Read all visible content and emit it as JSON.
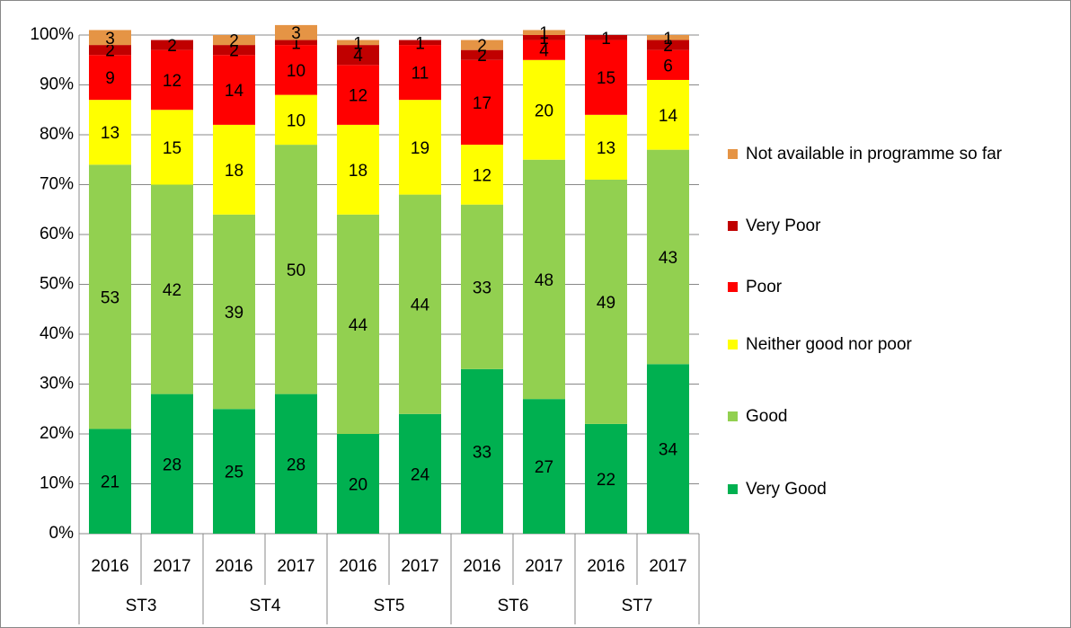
{
  "chart_data": {
    "type": "stacked_bar",
    "groups": [
      "ST3",
      "ST4",
      "ST5",
      "ST6",
      "ST7"
    ],
    "categories": [
      "2016",
      "2017",
      "2016",
      "2017",
      "2016",
      "2017",
      "2016",
      "2017",
      "2016",
      "2017"
    ],
    "series": [
      {
        "name": "Very Good",
        "color": "#00b050",
        "values": [
          21,
          28,
          25,
          28,
          20,
          24,
          33,
          27,
          22,
          34
        ]
      },
      {
        "name": "Good",
        "color": "#92d050",
        "values": [
          53,
          42,
          39,
          50,
          44,
          44,
          33,
          48,
          49,
          43
        ]
      },
      {
        "name": "Neither good nor poor",
        "color": "#ffff00",
        "values": [
          13,
          15,
          18,
          10,
          18,
          19,
          12,
          20,
          13,
          14
        ]
      },
      {
        "name": "Poor",
        "color": "#ff0000",
        "values": [
          9,
          12,
          14,
          10,
          12,
          11,
          17,
          4,
          15,
          6
        ]
      },
      {
        "name": "Very Poor",
        "color": "#c00000",
        "values": [
          2,
          2,
          2,
          1,
          4,
          1,
          2,
          1,
          1,
          2
        ]
      },
      {
        "name": "Not available in programme so far",
        "color": "#e59445",
        "values": [
          3,
          null,
          2,
          3,
          1,
          null,
          2,
          1,
          null,
          1
        ]
      }
    ],
    "ylim": [
      0,
      100
    ],
    "yticks": [
      {
        "value": 0,
        "label": "0%"
      },
      {
        "value": 10,
        "label": "10%"
      },
      {
        "value": 20,
        "label": "20%"
      },
      {
        "value": 30,
        "label": "30%"
      },
      {
        "value": 40,
        "label": "40%"
      },
      {
        "value": 50,
        "label": "50%"
      },
      {
        "value": 60,
        "label": "60%"
      },
      {
        "value": 70,
        "label": "70%"
      },
      {
        "value": 80,
        "label": "80%"
      },
      {
        "value": 90,
        "label": "90%"
      },
      {
        "value": 100,
        "label": "100%"
      }
    ],
    "grid": true,
    "legend": "right"
  }
}
